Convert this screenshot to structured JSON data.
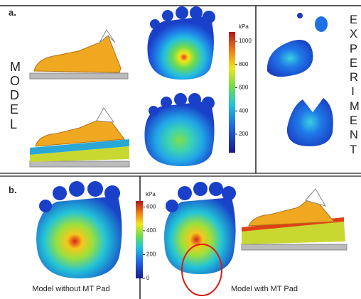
{
  "panel_a": {
    "label": "a.",
    "model_label": "MODEL",
    "experiment_label": "EXPERIMENT",
    "colorbar": {
      "unit": "kPa",
      "lim": [
        40,
        1080
      ],
      "ticks": [
        200,
        400,
        600,
        800,
        1000
      ]
    }
  },
  "panel_b": {
    "label": "b.",
    "colorbar": {
      "unit": "kPa",
      "lim": [
        0,
        650
      ],
      "ticks": [
        0,
        200,
        400,
        600
      ]
    },
    "captions": [
      "Model without MT Pad",
      "Model with MT Pad"
    ]
  }
}
